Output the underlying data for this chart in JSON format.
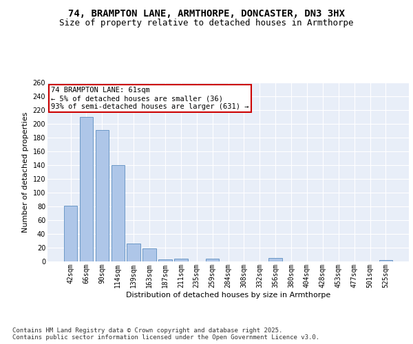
{
  "title_line1": "74, BRAMPTON LANE, ARMTHORPE, DONCASTER, DN3 3HX",
  "title_line2": "Size of property relative to detached houses in Armthorpe",
  "xlabel": "Distribution of detached houses by size in Armthorpe",
  "ylabel": "Number of detached properties",
  "categories": [
    "42sqm",
    "66sqm",
    "90sqm",
    "114sqm",
    "139sqm",
    "163sqm",
    "187sqm",
    "211sqm",
    "235sqm",
    "259sqm",
    "284sqm",
    "308sqm",
    "332sqm",
    "356sqm",
    "380sqm",
    "404sqm",
    "428sqm",
    "453sqm",
    "477sqm",
    "501sqm",
    "525sqm"
  ],
  "values": [
    81,
    210,
    191,
    140,
    26,
    19,
    3,
    4,
    0,
    4,
    0,
    0,
    0,
    5,
    0,
    0,
    0,
    0,
    0,
    0,
    2
  ],
  "bar_color": "#aec6e8",
  "bar_edge_color": "#5b8dc0",
  "annotation_text": "74 BRAMPTON LANE: 61sqm\n← 5% of detached houses are smaller (36)\n93% of semi-detached houses are larger (631) →",
  "annotation_box_color": "#ffffff",
  "annotation_box_edge": "#cc0000",
  "ylim": [
    0,
    260
  ],
  "yticks": [
    0,
    20,
    40,
    60,
    80,
    100,
    120,
    140,
    160,
    180,
    200,
    220,
    240,
    260
  ],
  "background_color": "#e8eef8",
  "footer_text": "Contains HM Land Registry data © Crown copyright and database right 2025.\nContains public sector information licensed under the Open Government Licence v3.0.",
  "title_fontsize": 10,
  "subtitle_fontsize": 9,
  "axis_label_fontsize": 8,
  "tick_fontsize": 7,
  "annotation_fontsize": 7.5,
  "footer_fontsize": 6.5
}
